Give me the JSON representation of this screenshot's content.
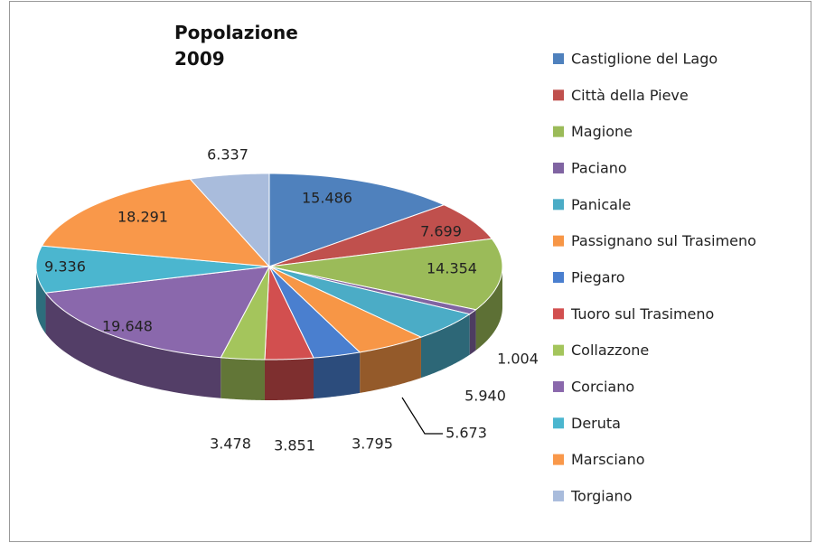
{
  "chart_data": {
    "type": "pie3d",
    "title": "Popolazione 2009",
    "categories": [
      "Castiglione del Lago",
      "Città della Pieve",
      "Magione",
      "Paciano",
      "Panicale",
      "Passignano sul Trasimeno",
      "Piegaro",
      "Tuoro sul Trasimeno",
      "Collazzone",
      "Corciano",
      "Deruta",
      "Marsciano",
      "Torgiano"
    ],
    "values": [
      15486,
      7699,
      14354,
      1004,
      5940,
      5673,
      3795,
      3851,
      3478,
      19648,
      9336,
      18291,
      6337
    ],
    "value_labels": [
      "15.486",
      "7.699",
      "14.354",
      "1.004",
      "5.940",
      "5.673",
      "3.795",
      "3.851",
      "3.478",
      "19.648",
      "9.336",
      "18.291",
      "6.337"
    ],
    "colors": [
      "#4f81bd",
      "#c0504d",
      "#9bbb59",
      "#8064a2",
      "#4bacc6",
      "#f79646",
      "#4a7fcf",
      "#d24f4f",
      "#a4c55c",
      "#8a68ac",
      "#4bb6cf",
      "#f9984a",
      "#a9bcdc"
    ],
    "legend": "right"
  }
}
